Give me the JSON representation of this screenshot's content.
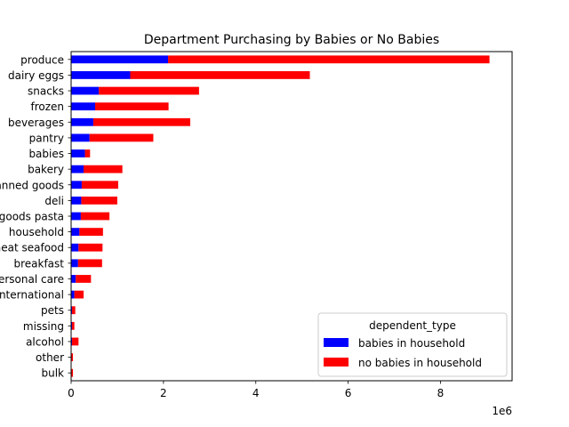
{
  "chart_data": {
    "type": "bar",
    "orientation": "horizontal",
    "stacked": true,
    "title": "Department Purchasing by Babies or No Babies",
    "xlabel": "",
    "ylabel": "",
    "x_scale_label": "1e6",
    "xlim": [
      0,
      9.55
    ],
    "x_ticks": [
      "0",
      "2",
      "4",
      "6",
      "8"
    ],
    "x_tick_values": [
      0,
      2,
      4,
      6,
      8
    ],
    "grid": false,
    "legend": {
      "title": "dependent_type",
      "placement": "lower-right"
    },
    "categories": [
      "produce",
      "dairy eggs",
      "snacks",
      "frozen",
      "beverages",
      "pantry",
      "babies",
      "bakery",
      "canned goods",
      "deli",
      "dry goods pasta",
      "household",
      "meat seafood",
      "breakfast",
      "personal care",
      "international",
      "pets",
      "missing",
      "alcohol",
      "other",
      "bulk"
    ],
    "series": [
      {
        "name": "babies in household",
        "color": "#0000ff",
        "values": [
          2.1,
          1.28,
          0.6,
          0.52,
          0.48,
          0.4,
          0.3,
          0.27,
          0.23,
          0.22,
          0.21,
          0.18,
          0.16,
          0.15,
          0.1,
          0.07,
          0.02,
          0.02,
          0.02,
          0.01,
          0.01
        ]
      },
      {
        "name": "no babies in household",
        "color": "#ff0000",
        "values": [
          6.96,
          3.89,
          2.17,
          1.59,
          2.1,
          1.38,
          0.11,
          0.84,
          0.79,
          0.78,
          0.62,
          0.51,
          0.52,
          0.52,
          0.33,
          0.2,
          0.07,
          0.05,
          0.14,
          0.03,
          0.03
        ]
      }
    ]
  }
}
